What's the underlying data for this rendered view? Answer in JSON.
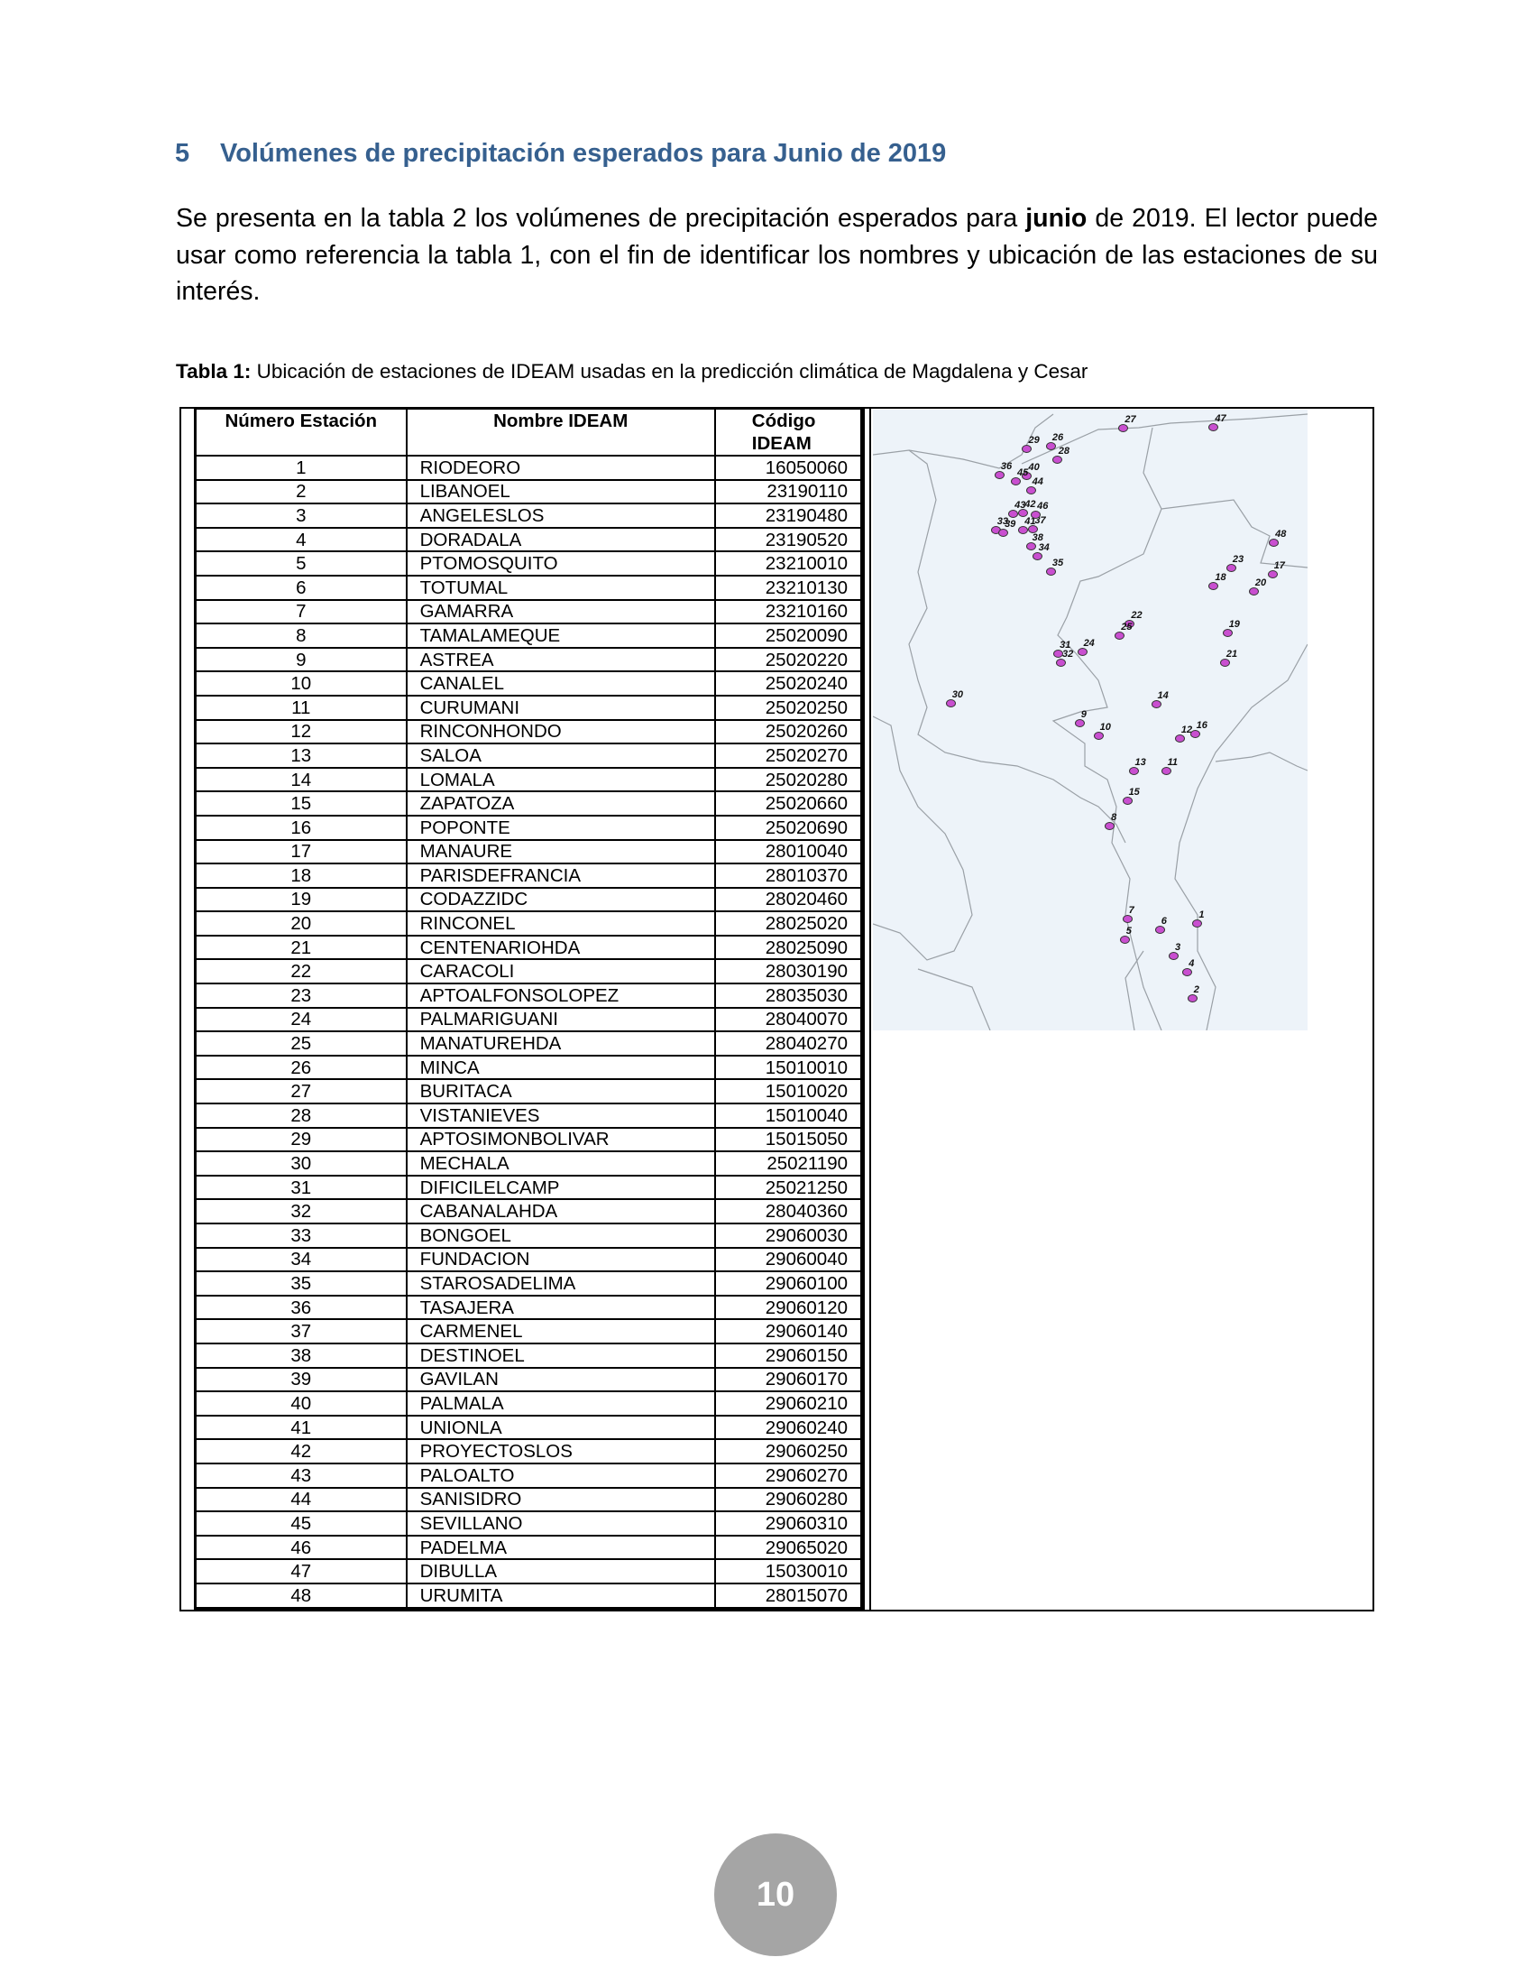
{
  "heading": {
    "number": "5",
    "title": "Volúmenes de precipitación esperados para Junio de 2019"
  },
  "paragraph": {
    "part1": "Se presenta en la tabla 2 los volúmenes de precipitación esperados para ",
    "bold": "junio",
    "part2": " de 2019. El lector puede usar como referencia la tabla 1, con el fin de identificar los nombres y ubicación de las estaciones de su interés."
  },
  "caption": {
    "label": "Tabla 1:",
    "text": " Ubicación de estaciones de IDEAM usadas en la predicción climática de Magdalena y Cesar"
  },
  "table": {
    "headers": [
      "Número Estación",
      "Nombre IDEAM",
      "Código IDEAM"
    ],
    "rows": [
      [
        "1",
        "RIODEORO",
        "16050060"
      ],
      [
        "2",
        "LIBANOEL",
        "23190110"
      ],
      [
        "3",
        "ANGELESLOS",
        "23190480"
      ],
      [
        "4",
        "DORADALA",
        "23190520"
      ],
      [
        "5",
        "PTOMOSQUITO",
        "23210010"
      ],
      [
        "6",
        "TOTUMAL",
        "23210130"
      ],
      [
        "7",
        "GAMARRA",
        "23210160"
      ],
      [
        "8",
        "TAMALAMEQUE",
        "25020090"
      ],
      [
        "9",
        "ASTREA",
        "25020220"
      ],
      [
        "10",
        "CANALEL",
        "25020240"
      ],
      [
        "11",
        "CURUMANI",
        "25020250"
      ],
      [
        "12",
        "RINCONHONDO",
        "25020260"
      ],
      [
        "13",
        "SALOA",
        "25020270"
      ],
      [
        "14",
        "LOMALA",
        "25020280"
      ],
      [
        "15",
        "ZAPATOZA",
        "25020660"
      ],
      [
        "16",
        "POPONTE",
        "25020690"
      ],
      [
        "17",
        "MANAURE",
        "28010040"
      ],
      [
        "18",
        "PARISDEFRANCIA",
        "28010370"
      ],
      [
        "19",
        "CODAZZIDC",
        "28020460"
      ],
      [
        "20",
        "RINCONEL",
        "28025020"
      ],
      [
        "21",
        "CENTENARIOHDA",
        "28025090"
      ],
      [
        "22",
        "CARACOLI",
        "28030190"
      ],
      [
        "23",
        "APTOALFONSOLOPEZ",
        "28035030"
      ],
      [
        "24",
        "PALMARIGUANI",
        "28040070"
      ],
      [
        "25",
        "MANATUREHDA",
        "28040270"
      ],
      [
        "26",
        "MINCA",
        "15010010"
      ],
      [
        "27",
        "BURITACA",
        "15010020"
      ],
      [
        "28",
        "VISTANIEVES",
        "15010040"
      ],
      [
        "29",
        "APTOSIMONBOLIVAR",
        "15015050"
      ],
      [
        "30",
        "MECHALA",
        "25021190"
      ],
      [
        "31",
        "DIFICILELCAMP",
        "25021250"
      ],
      [
        "32",
        "CABANALAHDA",
        "28040360"
      ],
      [
        "33",
        "BONGOEL",
        "29060030"
      ],
      [
        "34",
        "FUNDACION",
        "29060040"
      ],
      [
        "35",
        "STAROSADELIMA",
        "29060100"
      ],
      [
        "36",
        "TASAJERA",
        "29060120"
      ],
      [
        "37",
        "CARMENEL",
        "29060140"
      ],
      [
        "38",
        "DESTINOEL",
        "29060150"
      ],
      [
        "39",
        "GAVILAN",
        "29060170"
      ],
      [
        "40",
        "PALMALA",
        "29060210"
      ],
      [
        "41",
        "UNIONLA",
        "29060240"
      ],
      [
        "42",
        "PROYECTOSLOS",
        "29060250"
      ],
      [
        "43",
        "PALOALTO",
        "29060270"
      ],
      [
        "44",
        "SANISIDRO",
        "29060280"
      ],
      [
        "45",
        "SEVILLANO",
        "29060310"
      ],
      [
        "46",
        "PADELMA",
        "29065020"
      ],
      [
        "47",
        "DIBULLA",
        "15030010"
      ],
      [
        "48",
        "URUMITA",
        "28015070"
      ]
    ]
  },
  "map": {
    "marker_color": "#c94fd0",
    "land_color": "#edf3f9",
    "marker_labels": [
      "1",
      "2",
      "3",
      "4",
      "5",
      "6",
      "7",
      "8",
      "9",
      "10",
      "11",
      "12",
      "13",
      "14",
      "15",
      "16",
      "17",
      "18",
      "19",
      "20",
      "21",
      "22",
      "23",
      "24",
      "25",
      "26",
      "27",
      "28",
      "29",
      "30",
      "31",
      "32",
      "33",
      "34",
      "35",
      "36",
      "37",
      "38",
      "39",
      "40",
      "41",
      "42",
      "43",
      "44",
      "45",
      "46",
      "47",
      "48"
    ]
  },
  "page_number": "10"
}
